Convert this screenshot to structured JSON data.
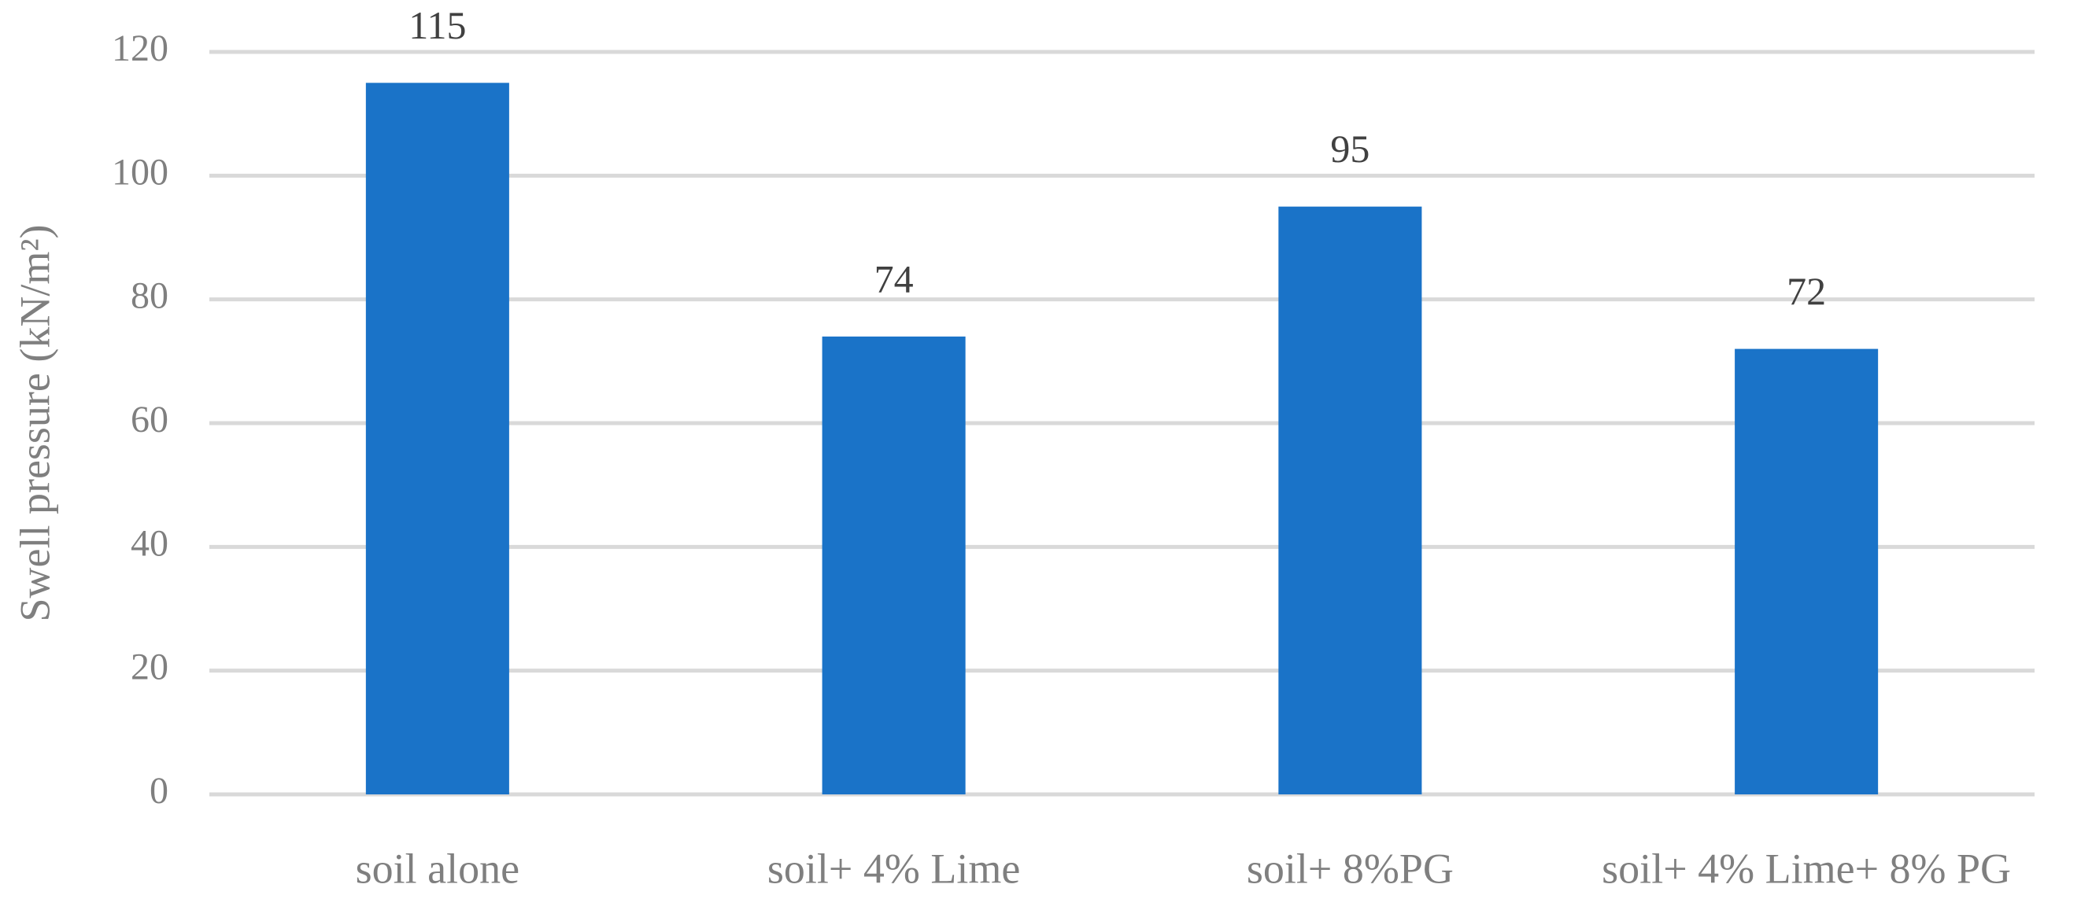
{
  "chart_data": {
    "type": "bar",
    "y_label": "Swell pressure (kN/m²)",
    "categories": [
      "soil alone",
      "soil+ 4% Lime",
      "soil+ 8%PG",
      "soil+ 4% Lime+ 8% PG"
    ],
    "values": [
      115,
      74,
      95,
      72
    ],
    "color": "#1a73c8",
    "ylim": [
      0,
      120
    ],
    "yticks": [
      0,
      20,
      40,
      60,
      80,
      100,
      120
    ],
    "grid": true
  }
}
